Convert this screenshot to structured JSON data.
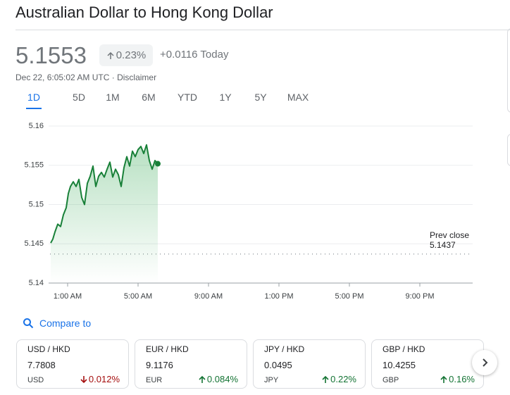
{
  "header": {
    "title": "Australian Dollar to Hong Kong Dollar"
  },
  "quote": {
    "price": "5.1553",
    "change_percent": "0.23%",
    "change": "+0.0116 Today",
    "timestamp": "Dec 22, 6:05:02 AM UTC",
    "separator": "·",
    "disclaimer": "Disclaimer"
  },
  "tabs": [
    "1D",
    "5D",
    "1M",
    "6M",
    "YTD",
    "1Y",
    "5Y",
    "MAX"
  ],
  "chart_data": {
    "type": "line",
    "x": [
      0.04,
      0.16,
      0.28,
      0.44,
      0.6,
      0.76,
      0.92,
      1.04,
      1.16,
      1.32,
      1.48,
      1.64,
      1.8,
      1.96,
      2.12,
      2.28,
      2.44,
      2.6,
      2.76,
      2.92,
      3.08,
      3.24,
      3.4,
      3.56,
      3.72,
      3.88,
      4.04,
      4.2,
      4.36,
      4.52,
      4.68,
      4.84,
      5.0,
      5.16,
      5.32,
      5.48,
      5.64,
      5.8,
      5.96,
      6.12
    ],
    "series": [
      {
        "color": "#188038",
        "values": [
          5.1451,
          5.1456,
          5.1465,
          5.1475,
          5.1472,
          5.1487,
          5.1496,
          5.1514,
          5.1523,
          5.1529,
          5.1523,
          5.1532,
          5.1509,
          5.15,
          5.1527,
          5.1536,
          5.1549,
          5.1523,
          5.1536,
          5.1541,
          5.1535,
          5.1545,
          5.1554,
          5.1535,
          5.1545,
          5.1538,
          5.1523,
          5.1547,
          5.1561,
          5.1549,
          5.1568,
          5.1561,
          5.157,
          5.1574,
          5.1565,
          5.1576,
          5.1556,
          5.1545,
          5.1556,
          5.1552
        ]
      }
    ],
    "xlim": [
      0,
      24
    ],
    "xticks": [
      {
        "value": 1,
        "label": "1:00 AM"
      },
      {
        "value": 5,
        "label": "5:00 AM"
      },
      {
        "value": 9,
        "label": "9:00 AM"
      },
      {
        "value": 13,
        "label": "1:00 PM"
      },
      {
        "value": 17,
        "label": "5:00 PM"
      },
      {
        "value": 21,
        "label": "9:00 PM"
      }
    ],
    "ylim": [
      5.14,
      5.16
    ],
    "yticks": [
      5.14,
      5.145,
      5.15,
      5.155,
      5.16
    ],
    "grid": true,
    "reference": {
      "label": "Prev close",
      "value": 5.1437
    }
  },
  "compare": {
    "label": "Compare to"
  },
  "cards": [
    {
      "pair": "USD / HKD",
      "price": "7.7808",
      "currency": "USD",
      "change": "0.012%",
      "direction": "down"
    },
    {
      "pair": "EUR / HKD",
      "price": "9.1176",
      "currency": "EUR",
      "change": "0.084%",
      "direction": "up"
    },
    {
      "pair": "JPY / HKD",
      "price": "0.0495",
      "currency": "JPY",
      "change": "0.22%",
      "direction": "up"
    },
    {
      "pair": "GBP / HKD",
      "price": "10.4255",
      "currency": "GBP",
      "change": "0.16%",
      "direction": "up"
    }
  ]
}
